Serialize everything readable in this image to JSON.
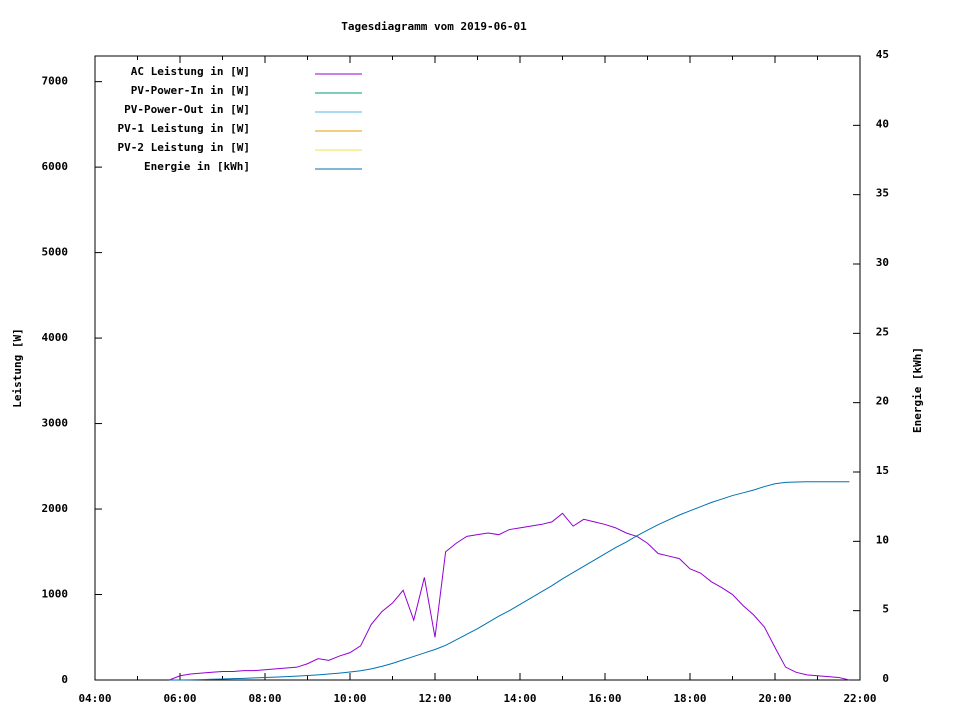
{
  "chart_data": {
    "type": "line",
    "title": "Tagesdiagramm vom 2019-06-01",
    "y_label": "Leistung [W]",
    "y2_label": "Energie [kWh]",
    "x": [
      5.75,
      6,
      6.25,
      6.5,
      6.75,
      7,
      7.25,
      7.5,
      7.75,
      8,
      8.25,
      8.5,
      8.75,
      9,
      9.25,
      9.5,
      9.75,
      10,
      10.25,
      10.5,
      10.75,
      11,
      11.25,
      11.5,
      11.75,
      12,
      12.25,
      12.5,
      12.75,
      13,
      13.25,
      13.5,
      13.75,
      14,
      14.25,
      14.5,
      14.75,
      15,
      15.25,
      15.5,
      15.75,
      16,
      16.25,
      16.5,
      16.75,
      17,
      17.25,
      17.5,
      17.75,
      18,
      18.25,
      18.5,
      18.75,
      19,
      19.25,
      19.5,
      19.75,
      20,
      20.25,
      20.5,
      20.75,
      21,
      21.25,
      21.5,
      21.75
    ],
    "xlim": [
      4,
      22
    ],
    "xticks": [
      {
        "value": 4,
        "label": "04:00"
      },
      {
        "value": 6,
        "label": "06:00"
      },
      {
        "value": 8,
        "label": "08:00"
      },
      {
        "value": 10,
        "label": "10:00"
      },
      {
        "value": 12,
        "label": "12:00"
      },
      {
        "value": 14,
        "label": "14:00"
      },
      {
        "value": 16,
        "label": "16:00"
      },
      {
        "value": 18,
        "label": "18:00"
      },
      {
        "value": 20,
        "label": "20:00"
      },
      {
        "value": 22,
        "label": "22:00"
      }
    ],
    "ylim": [
      0,
      7300
    ],
    "yticks": [
      0,
      1000,
      2000,
      3000,
      4000,
      5000,
      6000,
      7000
    ],
    "y2lim": [
      0,
      45
    ],
    "y2ticks": [
      0,
      5,
      10,
      15,
      20,
      25,
      30,
      35,
      40,
      45
    ],
    "series": [
      {
        "name": "AC Leistung in [W]",
        "color": "#9400d3",
        "values": [
          0,
          50,
          70,
          80,
          90,
          100,
          100,
          110,
          110,
          120,
          130,
          140,
          150,
          190,
          250,
          230,
          280,
          320,
          400,
          650,
          800,
          900,
          1050,
          700,
          1200,
          500,
          1500,
          1600,
          1680,
          1700,
          1720,
          1700,
          1760,
          1780,
          1800,
          1820,
          1850,
          1950,
          1800,
          1880,
          1850,
          1820,
          1780,
          1720,
          1680,
          1600,
          1480,
          1450,
          1420,
          1300,
          1250,
          1150,
          1080,
          1000,
          870,
          760,
          620,
          380,
          150,
          90,
          60,
          50,
          40,
          30,
          0
        ]
      },
      {
        "name": "PV-Power-In in [W]",
        "color": "#009e73",
        "values": [
          null,
          null,
          null,
          null,
          null,
          null,
          null,
          null,
          null,
          null,
          null,
          null,
          null,
          null,
          null,
          null,
          null,
          null,
          null,
          null,
          null,
          null,
          null,
          null,
          null,
          null,
          null,
          null,
          null,
          null,
          null,
          null,
          null,
          null,
          null,
          null,
          null,
          null,
          null,
          null,
          null,
          null,
          null,
          null,
          null,
          null,
          null,
          null,
          null,
          null,
          null,
          null,
          null,
          null,
          null,
          null,
          null,
          null,
          null,
          null,
          null,
          null,
          null,
          null,
          null
        ]
      },
      {
        "name": "PV-Power-Out in [W]",
        "color": "#56b4e9",
        "values": [
          null,
          null,
          null,
          null,
          null,
          null,
          null,
          null,
          null,
          null,
          null,
          null,
          null,
          null,
          null,
          null,
          null,
          null,
          null,
          null,
          null,
          null,
          null,
          null,
          null,
          null,
          null,
          null,
          null,
          null,
          null,
          null,
          null,
          null,
          null,
          null,
          null,
          null,
          null,
          null,
          null,
          null,
          null,
          null,
          null,
          null,
          null,
          null,
          null,
          null,
          null,
          null,
          null,
          null,
          null,
          null,
          null,
          null,
          null,
          null,
          null,
          null,
          null,
          null,
          null
        ]
      },
      {
        "name": "PV-1 Leistung in [W]",
        "color": "#e69f00",
        "values": [
          null,
          null,
          null,
          null,
          null,
          null,
          null,
          null,
          null,
          null,
          null,
          null,
          null,
          null,
          null,
          null,
          null,
          null,
          null,
          null,
          null,
          null,
          null,
          null,
          null,
          null,
          null,
          null,
          null,
          null,
          null,
          null,
          null,
          null,
          null,
          null,
          null,
          null,
          null,
          null,
          null,
          null,
          null,
          null,
          null,
          null,
          null,
          null,
          null,
          null,
          null,
          null,
          null,
          null,
          null,
          null,
          null,
          null,
          null,
          null,
          null,
          null,
          null,
          null,
          null
        ]
      },
      {
        "name": "PV-2 Leistung in [W]",
        "color": "#f0e442",
        "values": [
          null,
          null,
          null,
          null,
          null,
          null,
          null,
          null,
          null,
          null,
          null,
          null,
          null,
          null,
          null,
          null,
          null,
          null,
          null,
          null,
          null,
          null,
          null,
          null,
          null,
          null,
          null,
          null,
          null,
          null,
          null,
          null,
          null,
          null,
          null,
          null,
          null,
          null,
          null,
          null,
          null,
          null,
          null,
          null,
          null,
          null,
          null,
          null,
          null,
          null,
          null,
          null,
          null,
          null,
          null,
          null,
          null,
          null,
          null,
          null,
          null,
          null,
          null,
          null,
          null
        ]
      },
      {
        "name": "Energie in [kWh]",
        "color": "#0072b2",
        "axis": "y2",
        "values": [
          0,
          0,
          0.01,
          0.03,
          0.05,
          0.07,
          0.1,
          0.12,
          0.15,
          0.18,
          0.21,
          0.24,
          0.28,
          0.32,
          0.37,
          0.43,
          0.5,
          0.58,
          0.67,
          0.8,
          0.98,
          1.2,
          1.45,
          1.7,
          1.95,
          2.2,
          2.5,
          2.9,
          3.3,
          3.7,
          4.15,
          4.6,
          5.0,
          5.45,
          5.9,
          6.35,
          6.8,
          7.3,
          7.75,
          8.2,
          8.65,
          9.1,
          9.55,
          9.95,
          10.4,
          10.8,
          11.2,
          11.55,
          11.9,
          12.2,
          12.5,
          12.8,
          13.05,
          13.3,
          13.5,
          13.7,
          13.95,
          14.15,
          14.25,
          14.28,
          14.3,
          14.3,
          14.3,
          14.3,
          14.3
        ]
      }
    ]
  }
}
